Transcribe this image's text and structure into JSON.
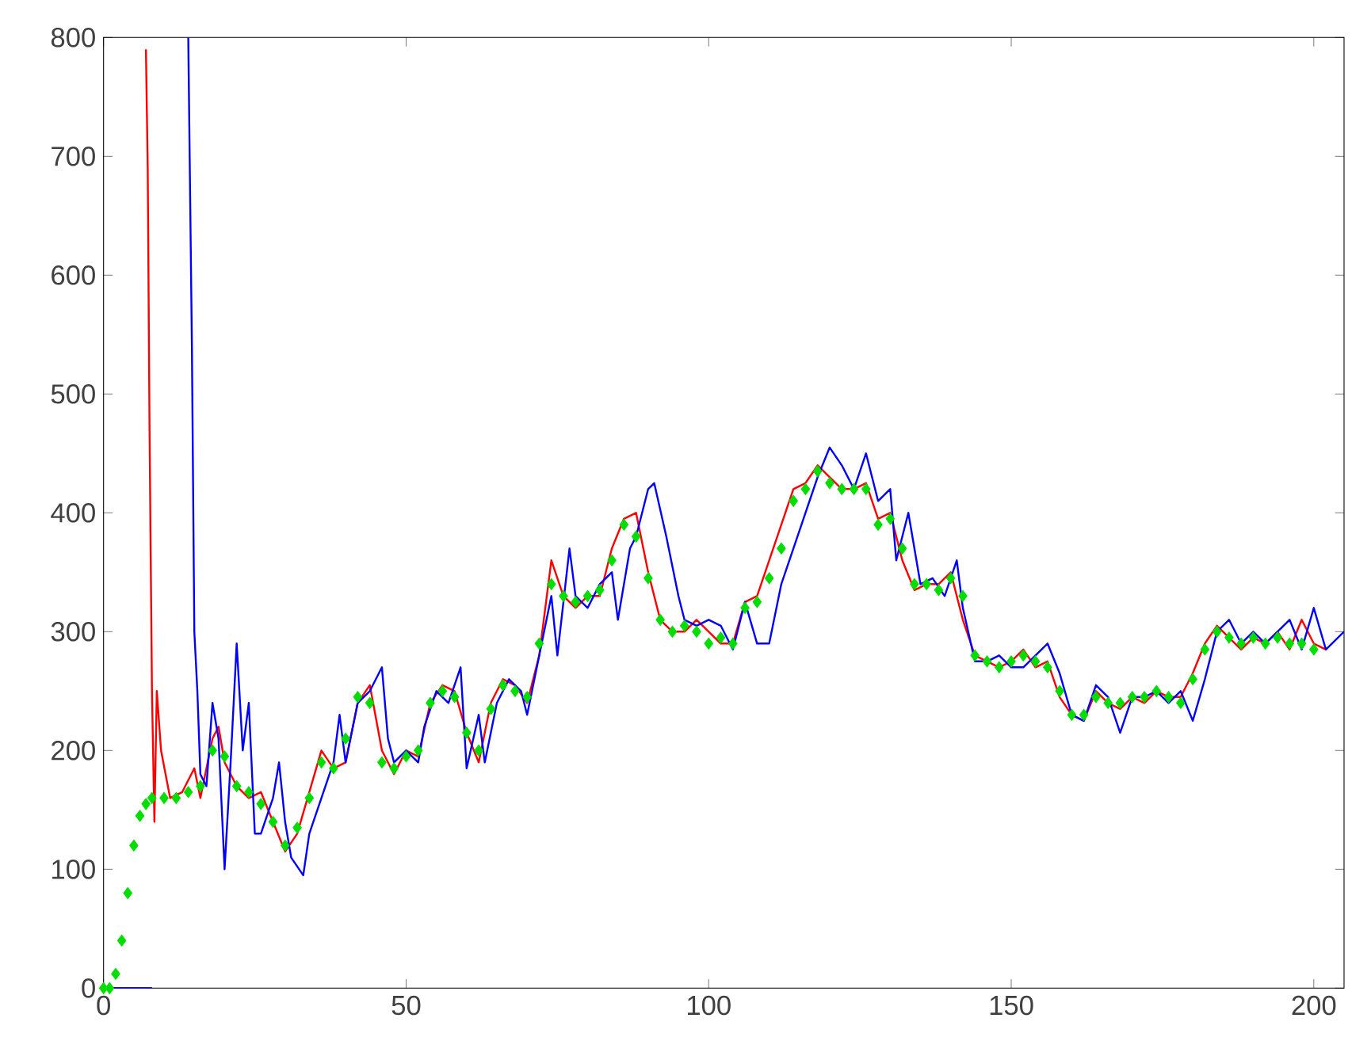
{
  "chart_data": {
    "type": "line",
    "xlim": [
      0,
      205
    ],
    "ylim": [
      0,
      800
    ],
    "xticks": [
      0,
      50,
      100,
      150,
      200
    ],
    "yticks": [
      0,
      100,
      200,
      300,
      400,
      500,
      600,
      700,
      800
    ],
    "grid": false,
    "series": [
      {
        "color": "#ff0000",
        "line_style": "solid",
        "x": [
          7,
          7.3,
          7.6,
          8,
          8.4,
          8.8,
          9.5,
          11,
          13,
          15,
          16,
          18,
          19,
          20,
          22,
          24,
          26,
          28,
          30,
          32,
          34,
          36,
          38,
          40,
          42,
          44,
          46,
          48,
          50,
          52,
          54,
          56,
          58,
          60,
          62,
          64,
          66,
          68,
          70,
          72,
          74,
          76,
          78,
          80,
          82,
          84,
          86,
          88,
          90,
          92,
          94,
          96,
          98,
          100,
          102,
          104,
          106,
          108,
          110,
          112,
          114,
          116,
          118,
          120,
          122,
          124,
          126,
          128,
          130,
          132,
          134,
          136,
          138,
          140,
          142,
          144,
          146,
          148,
          150,
          152,
          154,
          156,
          158,
          160,
          162,
          164,
          166,
          168,
          170,
          172,
          174,
          176,
          178,
          180,
          182,
          184,
          186,
          188,
          190,
          192,
          194,
          196,
          198,
          200,
          202
        ],
        "values": [
          790,
          690,
          470,
          250,
          140,
          250,
          200,
          160,
          165,
          185,
          160,
          210,
          220,
          190,
          170,
          160,
          165,
          140,
          115,
          130,
          165,
          200,
          185,
          190,
          240,
          255,
          200,
          180,
          200,
          195,
          240,
          255,
          250,
          215,
          190,
          240,
          260,
          255,
          240,
          280,
          360,
          330,
          320,
          330,
          330,
          370,
          395,
          400,
          350,
          310,
          300,
          300,
          310,
          300,
          290,
          290,
          325,
          330,
          360,
          390,
          420,
          425,
          440,
          430,
          420,
          420,
          425,
          395,
          400,
          360,
          335,
          340,
          340,
          350,
          310,
          280,
          275,
          270,
          275,
          285,
          270,
          275,
          245,
          230,
          225,
          250,
          240,
          235,
          245,
          240,
          250,
          245,
          245,
          265,
          290,
          305,
          295,
          285,
          295,
          290,
          300,
          285,
          310,
          290,
          285
        ]
      },
      {
        "color": "#0000ff",
        "line_style": "solid",
        "x": [
          0,
          8,
          11,
          14,
          14.6,
          15,
          15.5,
          16,
          17,
          18,
          19,
          20,
          21,
          22,
          23,
          24,
          25,
          26,
          28,
          29,
          30,
          31,
          33,
          34,
          36,
          38,
          39,
          40,
          42,
          44,
          46,
          47,
          48,
          50,
          52,
          53,
          55,
          57,
          59,
          60,
          62,
          63,
          65,
          67,
          69,
          70,
          72,
          74,
          75,
          77,
          78,
          80,
          82,
          84,
          85,
          87,
          88,
          90,
          91,
          93,
          95,
          96,
          98,
          100,
          102,
          104,
          106,
          108,
          110,
          112,
          114,
          116,
          118,
          120,
          122,
          124,
          126,
          128,
          130,
          131,
          133,
          135,
          137,
          139,
          141,
          142,
          144,
          146,
          148,
          150,
          152,
          154,
          156,
          158,
          160,
          162,
          164,
          166,
          168,
          170,
          172,
          174,
          176,
          178,
          180,
          182,
          184,
          186,
          188,
          190,
          192,
          194,
          196,
          198,
          200,
          202,
          205
        ],
        "values": [
          0,
          0,
          null,
          800,
          540,
          300,
          250,
          180,
          170,
          240,
          210,
          100,
          190,
          290,
          200,
          240,
          130,
          130,
          160,
          190,
          140,
          110,
          95,
          130,
          160,
          190,
          230,
          190,
          240,
          250,
          270,
          210,
          190,
          200,
          190,
          220,
          250,
          240,
          270,
          185,
          230,
          190,
          240,
          260,
          250,
          230,
          280,
          330,
          280,
          370,
          330,
          320,
          340,
          350,
          310,
          370,
          380,
          420,
          425,
          380,
          330,
          310,
          305,
          310,
          305,
          285,
          325,
          290,
          290,
          340,
          370,
          400,
          430,
          455,
          440,
          420,
          450,
          410,
          420,
          360,
          400,
          340,
          345,
          330,
          360,
          320,
          275,
          275,
          280,
          270,
          270,
          280,
          290,
          265,
          230,
          225,
          255,
          245,
          215,
          245,
          245,
          250,
          240,
          250,
          225,
          260,
          300,
          310,
          290,
          300,
          290,
          300,
          310,
          285,
          320,
          285,
          300
        ]
      },
      {
        "type": "scatter",
        "marker": "diamond",
        "color": "#00dd00",
        "x": [
          0,
          1,
          2,
          3,
          4,
          5,
          6,
          7,
          8,
          10,
          12,
          14,
          16,
          18,
          20,
          22,
          24,
          26,
          28,
          30,
          32,
          34,
          36,
          38,
          40,
          42,
          44,
          46,
          48,
          50,
          52,
          54,
          56,
          58,
          60,
          62,
          64,
          66,
          68,
          70,
          72,
          74,
          76,
          78,
          80,
          82,
          84,
          86,
          88,
          90,
          92,
          94,
          96,
          98,
          100,
          102,
          104,
          106,
          108,
          110,
          112,
          114,
          116,
          118,
          120,
          122,
          124,
          126,
          128,
          130,
          132,
          134,
          136,
          138,
          140,
          142,
          144,
          146,
          148,
          150,
          152,
          154,
          156,
          158,
          160,
          162,
          164,
          166,
          168,
          170,
          172,
          174,
          176,
          178,
          180,
          182,
          184,
          186,
          188,
          190,
          192,
          194,
          196,
          198,
          200
        ],
        "values": [
          0,
          0,
          12,
          40,
          80,
          120,
          145,
          155,
          160,
          160,
          160,
          165,
          170,
          200,
          195,
          170,
          165,
          155,
          140,
          120,
          135,
          160,
          190,
          185,
          210,
          245,
          240,
          190,
          185,
          195,
          200,
          240,
          250,
          245,
          215,
          200,
          235,
          255,
          250,
          245,
          290,
          340,
          330,
          325,
          330,
          335,
          360,
          390,
          380,
          345,
          310,
          300,
          305,
          300,
          290,
          295,
          290,
          320,
          325,
          345,
          370,
          410,
          420,
          435,
          425,
          420,
          420,
          420,
          390,
          395,
          370,
          340,
          340,
          335,
          345,
          330,
          280,
          275,
          270,
          275,
          280,
          275,
          270,
          250,
          230,
          230,
          245,
          240,
          240,
          245,
          245,
          250,
          245,
          240,
          260,
          285,
          300,
          295,
          290,
          295,
          290,
          295,
          290,
          290,
          285
        ]
      }
    ]
  }
}
